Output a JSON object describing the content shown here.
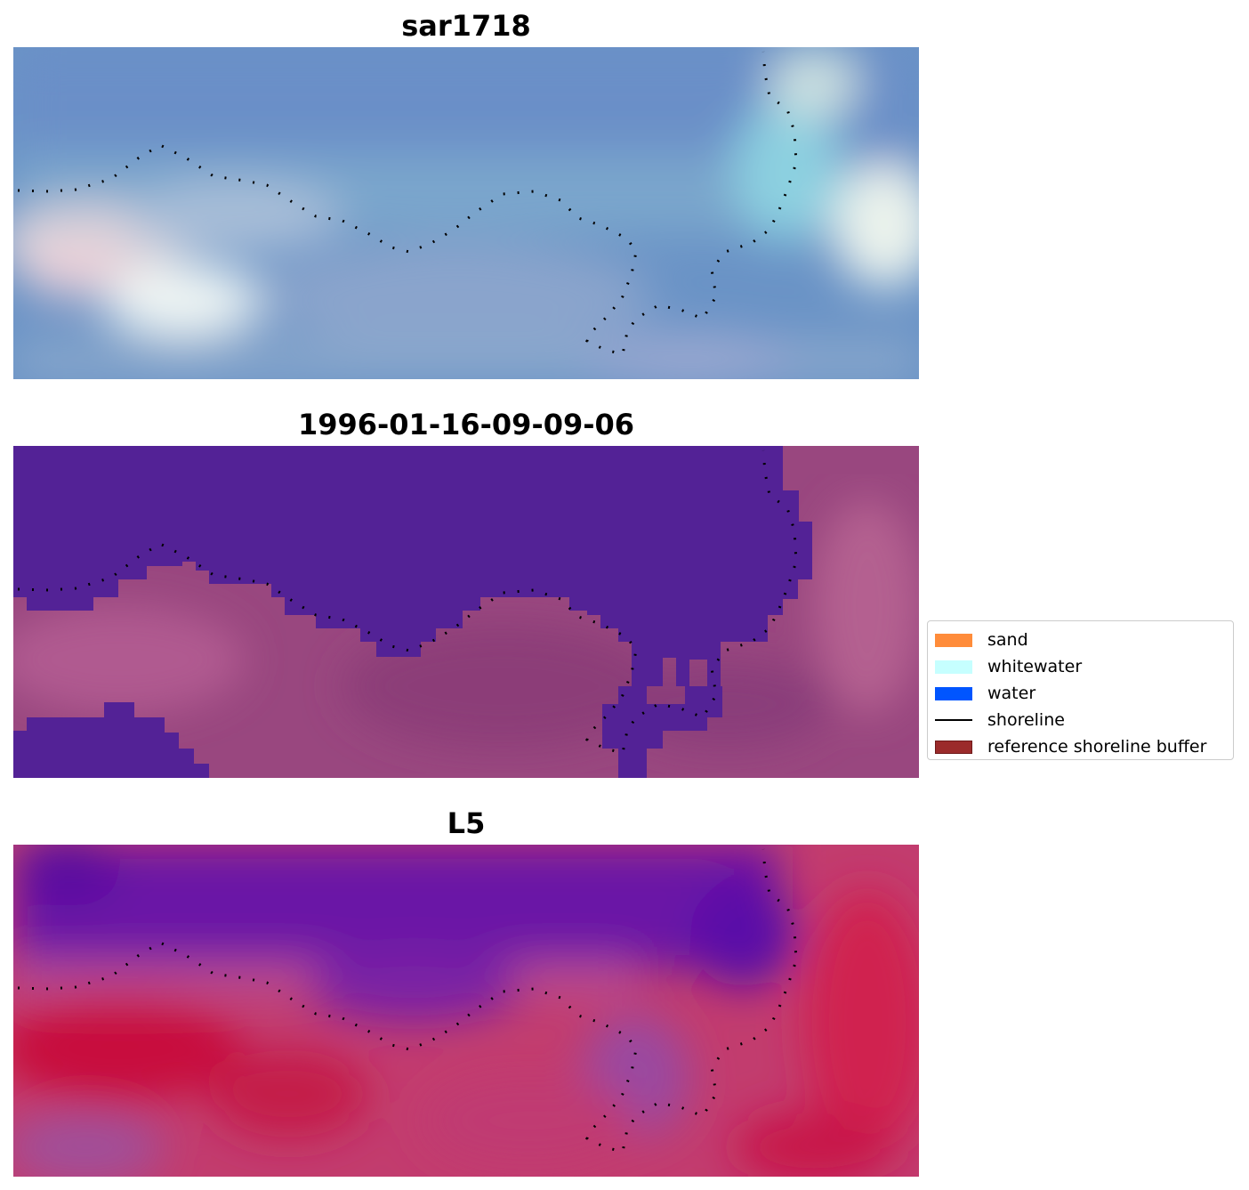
{
  "panels": [
    {
      "title": "sar1718"
    },
    {
      "title": "1996-01-16-09-09-06"
    },
    {
      "title": "L5"
    }
  ],
  "legend": {
    "items": [
      {
        "label": "sand",
        "color": "#ff8c3a",
        "kind": "patch"
      },
      {
        "label": "whitewater",
        "color": "#c6ffff",
        "kind": "patch"
      },
      {
        "label": "water",
        "color": "#0055ff",
        "kind": "patch"
      },
      {
        "label": "shoreline",
        "color": "#000000",
        "kind": "line"
      },
      {
        "label": "reference shoreline buffer",
        "color": "#9b2b2b",
        "kind": "patch-edged"
      }
    ]
  },
  "colors": {
    "panel1_water": "#6a95c8",
    "panel1_bright": "#f2f8f6",
    "panel2_water_class": "#532296",
    "panel2_land": "#9a4a86",
    "panel3_water": "#6a16a8",
    "panel3_land": "#c8245a",
    "shoreline": "#000000"
  }
}
